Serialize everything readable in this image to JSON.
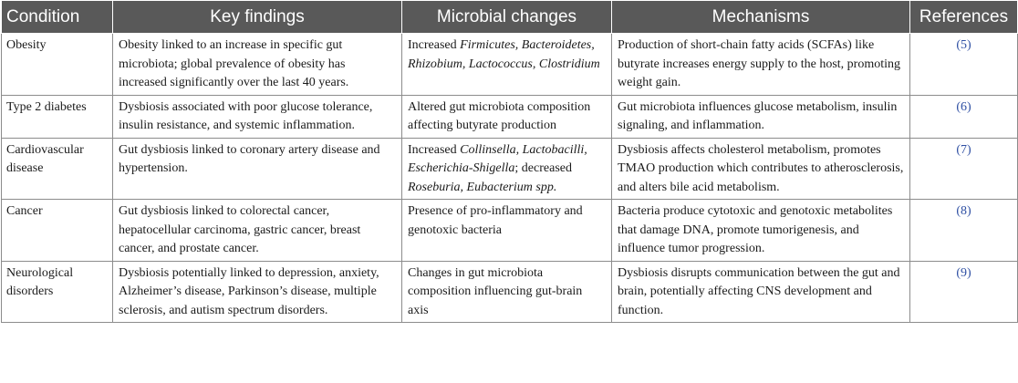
{
  "table": {
    "headers": [
      "Condition",
      "Key findings",
      "Microbial changes",
      "Mechanisms",
      "References"
    ],
    "rows": [
      {
        "condition": "Obesity",
        "findings": "Obesity linked to an increase in specific gut microbiota; global prevalence of obesity has increased significantly over the last 40 years.",
        "changes": [
          {
            "text": "Increased ",
            "italic": false
          },
          {
            "text": "Firmicutes, Bacteroidetes, Rhizobium, Lactococcus, Clostridium",
            "italic": true
          }
        ],
        "mechanisms": "Production of short-chain fatty acids (SCFAs) like butyrate increases energy supply to the host, promoting weight gain.",
        "reference": "(5)"
      },
      {
        "condition": "Type 2 diabetes",
        "findings": "Dysbiosis associated with poor glucose tolerance, insulin resistance, and systemic inflammation.",
        "changes": [
          {
            "text": "Altered gut microbiota composition affecting butyrate production",
            "italic": false
          }
        ],
        "mechanisms": "Gut microbiota influences glucose metabolism, insulin signaling, and inflammation.",
        "reference": "(6)"
      },
      {
        "condition": "Cardiovascular disease",
        "findings": "Gut dysbiosis linked to coronary artery disease and hypertension.",
        "changes": [
          {
            "text": "Increased ",
            "italic": false
          },
          {
            "text": "Collinsella, Lactobacilli, Escherichia-Shigella",
            "italic": true
          },
          {
            "text": "; decreased ",
            "italic": false
          },
          {
            "text": "Roseburia, Eubacterium spp.",
            "italic": true
          }
        ],
        "mechanisms": "Dysbiosis affects cholesterol metabolism, promotes TMAO production which contributes to atherosclerosis, and alters bile acid metabolism.",
        "reference": "(7)"
      },
      {
        "condition": "Cancer",
        "findings": "Gut dysbiosis linked to colorectal cancer, hepatocellular carcinoma, gastric cancer, breast cancer, and prostate cancer.",
        "changes": [
          {
            "text": "Presence of pro-inflammatory and genotoxic bacteria",
            "italic": false
          }
        ],
        "mechanisms": "Bacteria produce cytotoxic and genotoxic metabolites that damage DNA, promote tumorigenesis, and influence tumor progression.",
        "reference": "(8)"
      },
      {
        "condition": "Neurological disorders",
        "findings": "Dysbiosis potentially linked to depression, anxiety, Alzheimer’s disease, Parkinson’s disease, multiple sclerosis, and autism spectrum disorders.",
        "changes": [
          {
            "text": "Changes in gut microbiota composition influencing gut-brain axis",
            "italic": false
          }
        ],
        "mechanisms": "Dysbiosis disrupts communication between the gut and brain, potentially affecting CNS development and function.",
        "reference": "(9)"
      }
    ]
  }
}
